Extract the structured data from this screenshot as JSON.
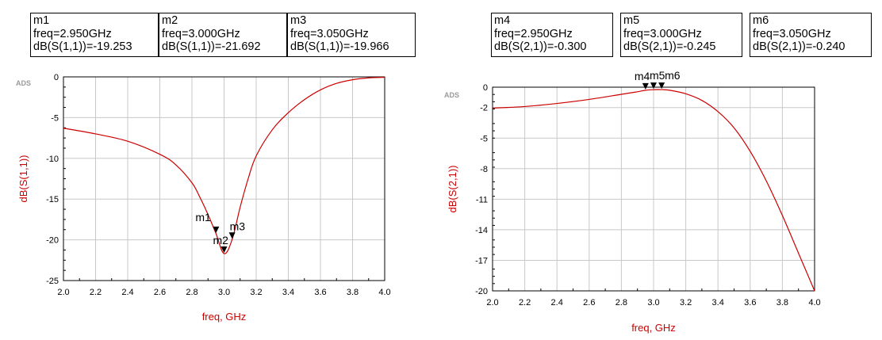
{
  "markers": [
    {
      "name": "m1",
      "freq": "freq=2.950GHz",
      "value": "dB(S(1,1))=-19.253"
    },
    {
      "name": "m2",
      "freq": "freq=3.000GHz",
      "value": "dB(S(1,1))=-21.692"
    },
    {
      "name": "m3",
      "freq": "freq=3.050GHz",
      "value": "dB(S(1,1))=-19.966"
    },
    {
      "name": "m4",
      "freq": "freq=2.950GHz",
      "value": "dB(S(2,1))=-0.300"
    },
    {
      "name": "m5",
      "freq": "freq=3.000GHz",
      "value": "dB(S(2,1))=-0.245"
    },
    {
      "name": "m6",
      "freq": "freq=3.050GHz",
      "value": "dB(S(2,1))=-0.240"
    }
  ],
  "chart_data": [
    {
      "type": "line",
      "watermark": "ADS",
      "xlabel": "freq, GHz",
      "ylabel": "dB(S(1,1))",
      "xlim": [
        2.0,
        4.0
      ],
      "ylim": [
        -25,
        0
      ],
      "xticks": [
        "2.0",
        "2.2",
        "2.4",
        "2.6",
        "2.8",
        "3.0",
        "3.2",
        "3.4",
        "3.6",
        "3.8",
        "4.0"
      ],
      "yticks": [
        "0",
        "-5",
        "-10",
        "-15",
        "-20",
        "-25"
      ],
      "grid": true,
      "line_color": "#cc0000",
      "series": [
        {
          "x": [
            2.0,
            2.2,
            2.4,
            2.6,
            2.7,
            2.8,
            2.85,
            2.9,
            2.95,
            3.0,
            3.05,
            3.1,
            3.15,
            3.2,
            3.3,
            3.4,
            3.5,
            3.6,
            3.7,
            3.8,
            3.9,
            4.0
          ],
          "y": [
            -6.3,
            -7.0,
            -7.9,
            -9.5,
            -10.8,
            -13.0,
            -14.8,
            -16.9,
            -19.25,
            -21.69,
            -19.97,
            -16.0,
            -12.5,
            -9.7,
            -6.5,
            -4.4,
            -2.8,
            -1.6,
            -0.8,
            -0.35,
            -0.12,
            -0.05
          ]
        }
      ],
      "markers": [
        {
          "label": "m1",
          "x": 2.95,
          "y": -19.253
        },
        {
          "label": "m2",
          "x": 3.0,
          "y": -21.692
        },
        {
          "label": "m3",
          "x": 3.05,
          "y": -19.966
        }
      ]
    },
    {
      "type": "line",
      "watermark": "ADS",
      "xlabel": "freq, GHz",
      "ylabel": "dB(S(2,1))",
      "xlim": [
        2.0,
        4.0
      ],
      "ylim": [
        -20,
        0
      ],
      "xticks": [
        "2.0",
        "2.2",
        "2.4",
        "2.6",
        "2.8",
        "3.0",
        "3.2",
        "3.4",
        "3.6",
        "3.8",
        "4.0"
      ],
      "yticks": [
        "0",
        "-2",
        "-5",
        "-8",
        "-11",
        "-14",
        "-17",
        "-20"
      ],
      "grid": true,
      "line_color": "#cc0000",
      "series": [
        {
          "x": [
            2.0,
            2.2,
            2.4,
            2.6,
            2.8,
            2.9,
            2.95,
            3.0,
            3.05,
            3.1,
            3.2,
            3.3,
            3.4,
            3.5,
            3.6,
            3.7,
            3.8,
            3.9,
            4.0
          ],
          "y": [
            -2.05,
            -1.9,
            -1.6,
            -1.2,
            -0.7,
            -0.45,
            -0.3,
            -0.245,
            -0.24,
            -0.3,
            -0.65,
            -1.3,
            -2.4,
            -4.0,
            -6.3,
            -9.2,
            -12.6,
            -16.3,
            -20.0
          ]
        }
      ],
      "markers": [
        {
          "label": "m4",
          "x": 2.95,
          "y": -0.3
        },
        {
          "label": "m5",
          "x": 3.0,
          "y": -0.245
        },
        {
          "label": "m6",
          "x": 3.05,
          "y": -0.24
        }
      ]
    }
  ]
}
